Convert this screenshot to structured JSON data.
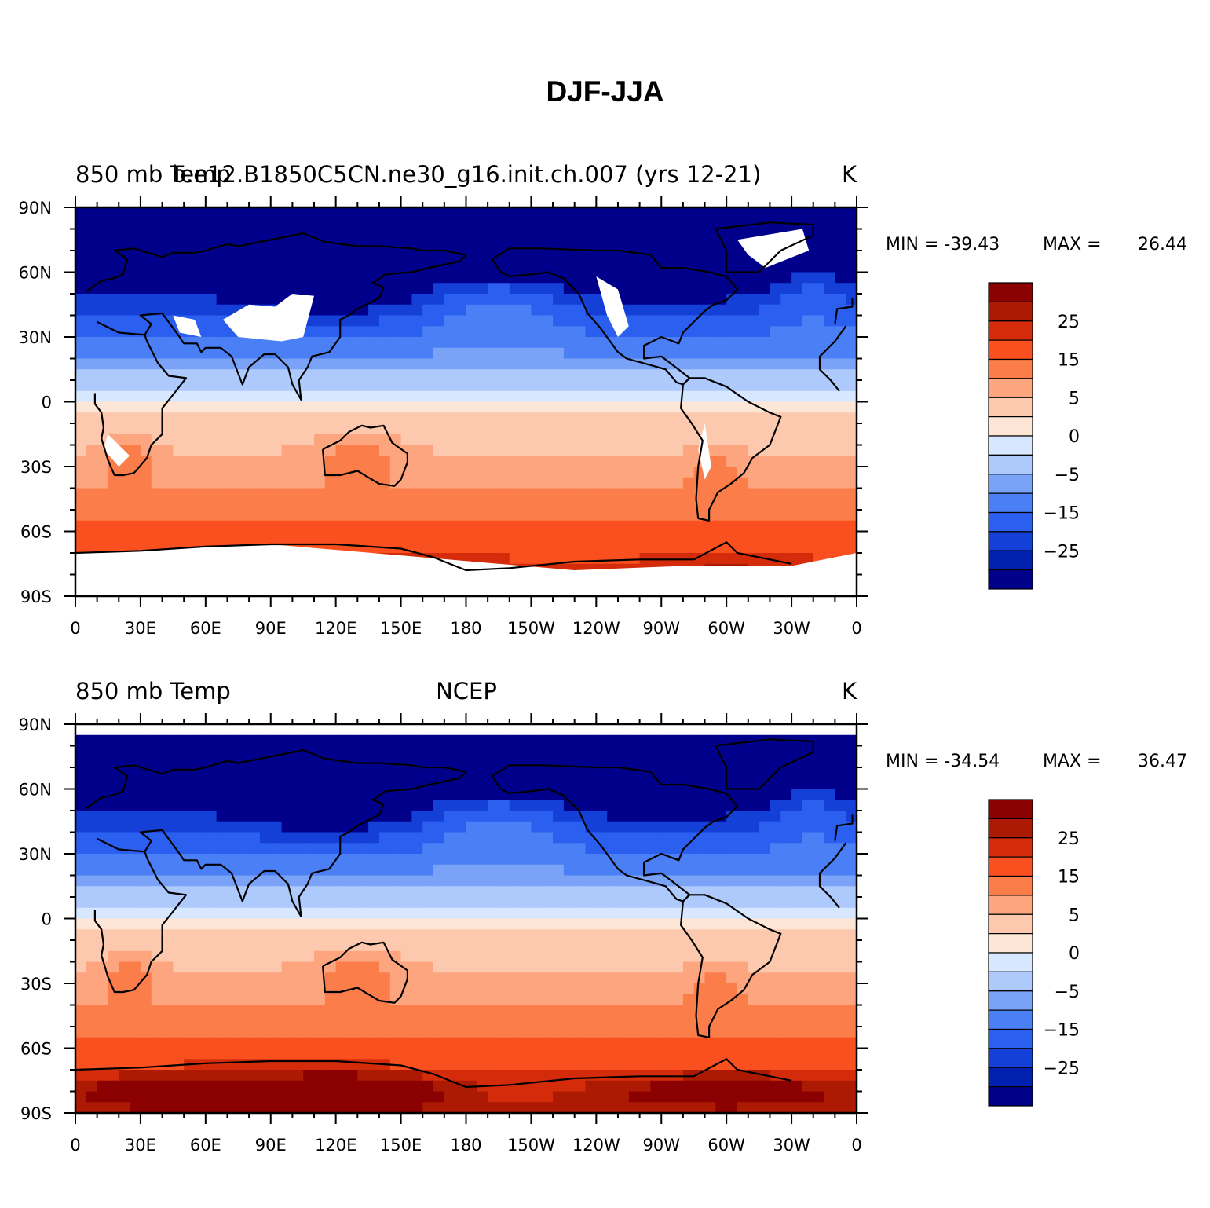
{
  "title": "DJF-JJA",
  "levels": [
    -30,
    -25,
    -20,
    -15,
    -10,
    -5,
    0,
    5,
    10,
    15,
    20,
    25,
    30
  ],
  "colorbar": {
    "colors": [
      "#00008b",
      "#0020b0",
      "#1540d8",
      "#2a5ff0",
      "#4a7ff5",
      "#7aa3f8",
      "#aec9fb",
      "#d6e7ff",
      "#fde6d6",
      "#fdc9ae",
      "#fca57f",
      "#fb7d4a",
      "#fa4f1f",
      "#d42c0a",
      "#ad1a04",
      "#8b0000"
    ],
    "tick_labels": [
      "25",
      "15",
      "5",
      "0",
      "-5",
      "-15",
      "-25"
    ]
  },
  "map_axes": {
    "x_labels": [
      "0",
      "30E",
      "60E",
      "90E",
      "120E",
      "150E",
      "180",
      "150W",
      "120W",
      "90W",
      "60W",
      "30W",
      "0"
    ],
    "y_labels": [
      "90N",
      "60N",
      "30N",
      "0",
      "30S",
      "60S",
      "90S"
    ]
  },
  "panels": [
    {
      "left_title": "850 mb Temp",
      "center_title": "b.e12.B1850C5CN.ne30_g16.init.ch.007 (yrs 12-21)",
      "units": "K",
      "min_label": "MIN =",
      "min_value": "-39.43",
      "max_label": "MAX =",
      "max_value": "26.44",
      "has_missing_masks": true
    },
    {
      "left_title": "850 mb Temp",
      "center_title": "NCEP",
      "units": "K",
      "min_label": "MIN =",
      "min_value": "-34.54",
      "max_label": "MAX =",
      "max_value": "36.47",
      "has_missing_masks": false
    }
  ]
}
